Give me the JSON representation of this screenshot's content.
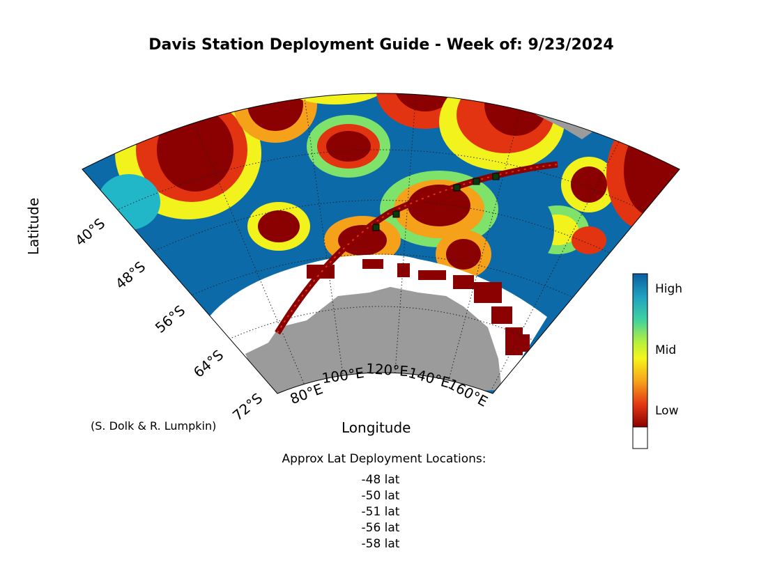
{
  "title": "Davis Station Deployment Guide - Week of: 9/23/2024",
  "axes": {
    "xlabel": "Longitude",
    "ylabel": "Latitude"
  },
  "lat_ticks": [
    "40°S",
    "48°S",
    "56°S",
    "64°S",
    "72°S"
  ],
  "lon_ticks": [
    "80°E",
    "100°E",
    "120°E",
    "140°E",
    "160°E"
  ],
  "credit": "(S. Dolk & R. Lumpkin)",
  "colorbar": {
    "labels": [
      "High",
      "Mid",
      "Low"
    ],
    "colors": [
      "#0b5ea0",
      "#1fa1c2",
      "#3fd1a0",
      "#b8f03a",
      "#f5f51b",
      "#f7a41a",
      "#e53914",
      "#8b0000"
    ]
  },
  "map_colors": {
    "land": "#9b9b9b",
    "ocean_blue": "#0d6aa8",
    "cyan": "#22b6c9",
    "green": "#7fe26a",
    "yellow": "#f2f21c",
    "orange": "#f6a11a",
    "red": "#e23411",
    "dark_red": "#8b0000"
  },
  "deployment": {
    "heading": "Approx Lat Deployment Locations:",
    "locations": [
      "-48 lat",
      "-50 lat",
      "-51 lat",
      "-56 lat",
      "-58 lat"
    ]
  }
}
